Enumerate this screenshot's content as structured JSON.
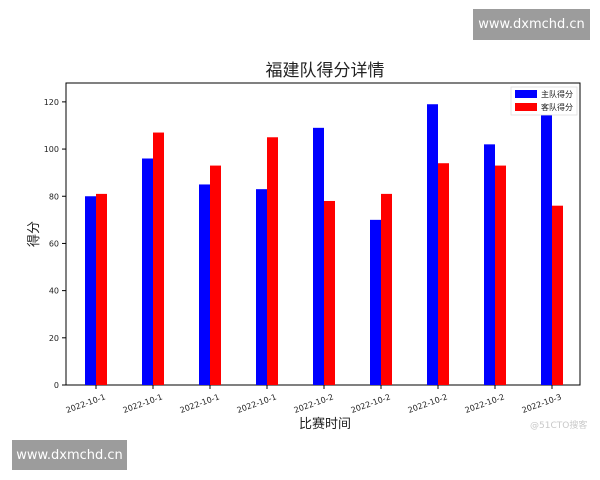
{
  "watermarks": {
    "top": "www.dxmchd.cn",
    "bottom": "www.dxmchd.cn",
    "corner": "@51CTO搜客"
  },
  "chart_data": {
    "type": "bar",
    "title": "福建队得分详情",
    "xlabel": "比赛时间",
    "ylabel": "得分",
    "categories": [
      "2022-10-1",
      "2022-10-1",
      "2022-10-1",
      "2022-10-1",
      "2022-10-2",
      "2022-10-2",
      "2022-10-2",
      "2022-10-2",
      "2022-10-3"
    ],
    "series": [
      {
        "name": "主队得分",
        "color": "#0000ff",
        "values": [
          80,
          96,
          85,
          83,
          109,
          70,
          119,
          102,
          119
        ]
      },
      {
        "name": "客队得分",
        "color": "#ff0000",
        "values": [
          81,
          107,
          93,
          105,
          78,
          81,
          94,
          93,
          76
        ]
      }
    ],
    "ylim": [
      0,
      128
    ],
    "yticks": [
      0,
      20,
      40,
      60,
      80,
      100,
      120
    ],
    "grid": false,
    "legend_position": "top-right"
  }
}
